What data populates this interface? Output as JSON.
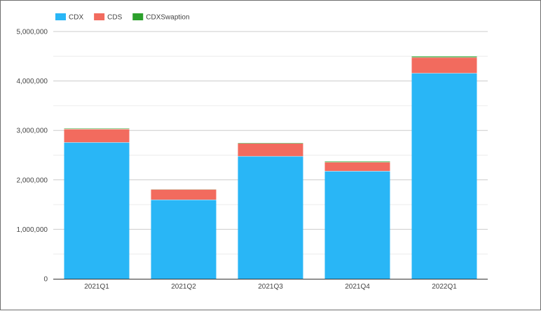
{
  "chart_data": {
    "type": "bar",
    "stacked": true,
    "categories": [
      "2021Q1",
      "2021Q2",
      "2021Q3",
      "2021Q4",
      "2022Q1"
    ],
    "series": [
      {
        "name": "CDX",
        "color": "#29b6f6",
        "values": [
          2760000,
          1600000,
          2480000,
          2180000,
          4160000
        ]
      },
      {
        "name": "CDS",
        "color": "#f26b5e",
        "values": [
          270000,
          210000,
          260000,
          180000,
          320000
        ]
      },
      {
        "name": "CDXSwaption",
        "color": "#2ca02c",
        "values": [
          15000,
          8000,
          15000,
          20000,
          25000
        ]
      }
    ],
    "y_ticks": [
      "0",
      "1,000,000",
      "2,000,000",
      "3,000,000",
      "4,000,000",
      "5,000,000"
    ],
    "ylim": [
      0,
      5000000
    ],
    "legend_position": "top-left",
    "grid": true
  }
}
